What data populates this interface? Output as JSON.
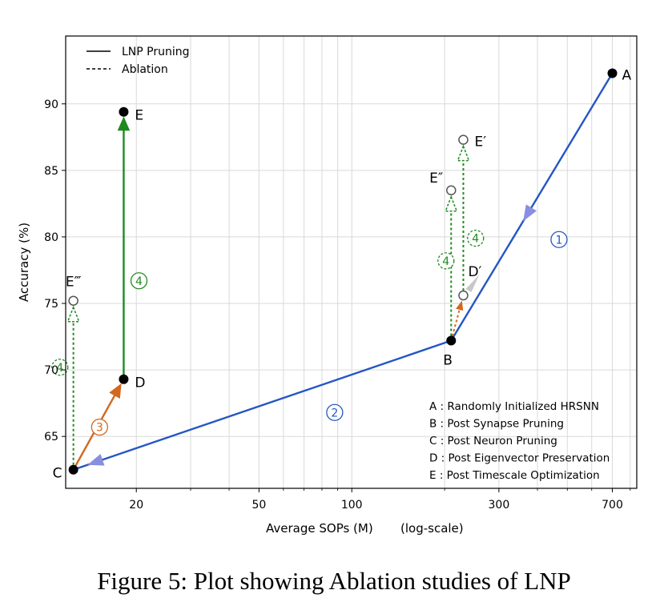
{
  "caption": "Figure 5: Plot showing Ablation studies of LNP",
  "colors": {
    "blue": "#2456c4",
    "green": "#1f8a1f",
    "orange": "#d2691e",
    "arrow_blue": "#8a8ee0",
    "grid": "#d9d9d9",
    "black": "#000000"
  },
  "chart_data": {
    "type": "line",
    "title": "",
    "xlabel": "Average SOPs (M)",
    "xlabel_note": "(log-scale)",
    "ylabel": "Accuracy (%)",
    "xscale": "log",
    "xlim": [
      11.8,
      840
    ],
    "ylim": [
      61.1,
      95.1
    ],
    "xticks": [
      20,
      50,
      100,
      300,
      700
    ],
    "xtick_labels": [
      "20",
      "50",
      "100",
      "300",
      "700"
    ],
    "yticks": [
      65,
      70,
      75,
      80,
      85,
      90
    ],
    "ytick_labels": [
      "65",
      "70",
      "75",
      "80",
      "85",
      "90"
    ],
    "grid": true,
    "legend": {
      "position": "top-left",
      "entries": [
        {
          "label": "LNP Pruning",
          "style": "solid"
        },
        {
          "label": "Ablation",
          "style": "dashed"
        }
      ]
    },
    "points": [
      {
        "id": "A",
        "label": "A",
        "x": 700,
        "y": 92.3,
        "filled": true
      },
      {
        "id": "B",
        "label": "B",
        "x": 210,
        "y": 72.2,
        "filled": true
      },
      {
        "id": "C",
        "label": "C",
        "x": 12.5,
        "y": 62.5,
        "filled": true
      },
      {
        "id": "D",
        "label": "D",
        "x": 18.2,
        "y": 69.3,
        "filled": true
      },
      {
        "id": "E",
        "label": "E",
        "x": 18.2,
        "y": 89.4,
        "filled": true
      },
      {
        "id": "Dp",
        "label": "D′",
        "x": 230,
        "y": 75.6,
        "filled": false
      },
      {
        "id": "Ep",
        "label": "E′",
        "x": 230,
        "y": 87.3,
        "filled": false
      },
      {
        "id": "Epp",
        "label": "E″",
        "x": 210,
        "y": 83.5,
        "filled": false
      },
      {
        "id": "Eppp",
        "label": "E‴",
        "x": 12.5,
        "y": 75.2,
        "filled": false
      }
    ],
    "lnp_path": [
      {
        "from": "A",
        "to": "B",
        "step": "1",
        "color": "blue"
      },
      {
        "from": "B",
        "to": "C",
        "step": "2",
        "color": "blue"
      },
      {
        "from": "C",
        "to": "D",
        "step": "3",
        "color": "orange"
      },
      {
        "from": "D",
        "to": "E",
        "step": "4",
        "color": "green"
      }
    ],
    "ablations": [
      {
        "from": "B",
        "to": "Dp",
        "color": "orange"
      },
      {
        "from": "Dp",
        "to": "Ep",
        "step": "4",
        "color": "green"
      },
      {
        "from": "B",
        "to": "Epp",
        "step": "4",
        "color": "green"
      },
      {
        "from": "C",
        "to": "Eppp",
        "step": "4",
        "color": "green"
      }
    ],
    "step_markers": [
      {
        "text": "1",
        "x": 470,
        "y": 79.8,
        "color": "blue",
        "dashed": false
      },
      {
        "text": "2",
        "x": 88,
        "y": 66.8,
        "color": "blue",
        "dashed": false
      },
      {
        "text": "3",
        "x": 15.2,
        "y": 65.7,
        "color": "orange",
        "dashed": false
      },
      {
        "text": "4",
        "x": 20.4,
        "y": 76.7,
        "color": "green",
        "dashed": false
      },
      {
        "text": "4",
        "x": 11.3,
        "y": 70.2,
        "color": "green",
        "dashed": true
      },
      {
        "text": "4",
        "x": 252,
        "y": 79.9,
        "color": "green",
        "dashed": true
      },
      {
        "text": "4",
        "x": 202,
        "y": 78.2,
        "color": "green",
        "dashed": true
      }
    ],
    "annotation_box": [
      "A : Randomly Initialized HRSNN",
      "B : Post Synapse Pruning",
      "C : Post Neuron Pruning",
      "D : Post Eigenvector Preservation",
      "E : Post Timescale Optimization"
    ]
  }
}
